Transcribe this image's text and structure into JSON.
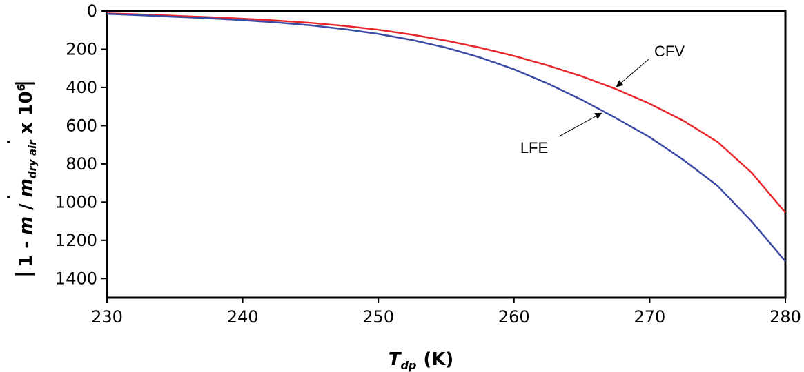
{
  "chart_data": {
    "type": "line",
    "xlabel_symbol": "T",
    "xlabel_sub": "dp",
    "xlabel_unit": "(K)",
    "ylabel_pre": "1 - ",
    "ylabel_m1": "m",
    "ylabel_mid": " / ",
    "ylabel_m2": "m",
    "ylabel_sub": "dry air",
    "ylabel_post": " x 10",
    "ylabel_exp": "6",
    "x_ticks": [
      230,
      240,
      250,
      260,
      270,
      280
    ],
    "y_ticks": [
      0,
      200,
      400,
      600,
      800,
      1000,
      1200,
      1400
    ],
    "xlim": [
      230,
      280
    ],
    "ylim": [
      0,
      1500
    ],
    "y_inverted": true,
    "grid": false,
    "x": [
      230,
      232.5,
      235,
      237.5,
      240,
      242.5,
      245,
      247.5,
      250,
      252.5,
      255,
      257.5,
      260,
      262.5,
      265,
      267.5,
      270,
      272.5,
      275,
      277.5,
      280
    ],
    "series": [
      {
        "name": "CFV",
        "color": "#e8262b",
        "values": [
          12,
          18,
          25,
          32,
          40,
          50,
          62,
          78,
          98,
          124,
          155,
          192,
          235,
          285,
          342,
          408,
          485,
          575,
          685,
          845,
          1055
        ]
      },
      {
        "name": "LFE",
        "color": "#3b4aa3",
        "values": [
          15,
          22,
          30,
          38,
          48,
          60,
          75,
          95,
          120,
          152,
          192,
          243,
          305,
          380,
          465,
          560,
          660,
          780,
          915,
          1100,
          1310
        ]
      }
    ],
    "annotations": [
      {
        "text": "CFV",
        "series": "CFV",
        "arrow_x": 267.5
      },
      {
        "text": "LFE",
        "series": "LFE",
        "arrow_x": 266.5
      }
    ]
  }
}
